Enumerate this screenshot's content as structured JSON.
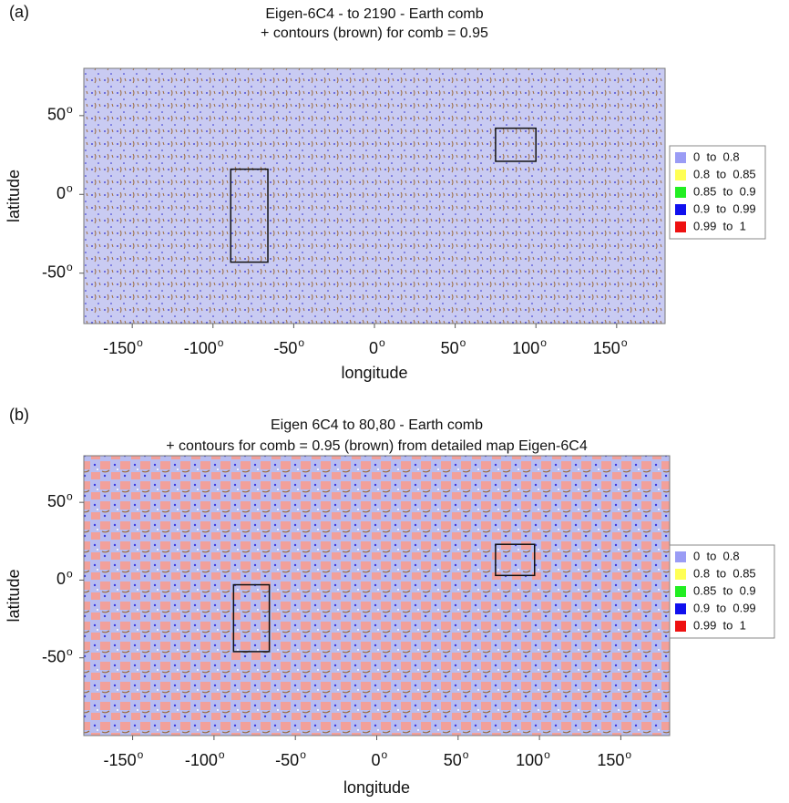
{
  "figure": {
    "tick_suffix": "o",
    "panels": [
      {
        "label": "(a)",
        "title_lines": [
          "Eigen-6C4 - to 2190 - Earth comb",
          "+ contours (brown) for comb = 0.95"
        ],
        "x_label": "longitude",
        "y_label": "latitude",
        "xlim": [
          -180,
          180
        ],
        "ylim": [
          -82,
          80
        ],
        "xticks": [
          -150,
          -100,
          -50,
          0,
          50,
          100,
          150
        ],
        "yticks": [
          -50,
          0,
          50
        ],
        "boxes": [
          {
            "lon": [
              -89,
              -66
            ],
            "lat": [
              -43,
              16
            ]
          },
          {
            "lon": [
              75,
              100
            ],
            "lat": [
              21,
              42
            ]
          }
        ],
        "legend": [
          {
            "label": "0  to  0.8",
            "color": "#9a9cf5"
          },
          {
            "label": "0.8  to  0.85",
            "color": "#ffff55"
          },
          {
            "label": "0.85  to  0.9",
            "color": "#22ee22"
          },
          {
            "label": "0.9  to  0.99",
            "color": "#1010ee"
          },
          {
            "label": "0.99  to  1",
            "color": "#ee1111"
          }
        ]
      },
      {
        "label": "(b)",
        "title_lines": [
          "Eigen 6C4 to 80,80 - Earth comb",
          "+ contours for comb = 0.95 (brown) from detailed map Eigen-6C4"
        ],
        "x_label": "longitude",
        "y_label": "latitude",
        "xlim": [
          -180,
          180
        ],
        "ylim": [
          -100,
          80
        ],
        "xticks": [
          -150,
          -100,
          -50,
          0,
          50,
          100,
          150
        ],
        "yticks": [
          -50,
          0,
          50
        ],
        "boxes": [
          {
            "lon": [
              -88,
              -66
            ],
            "lat": [
              -46,
              -3
            ]
          },
          {
            "lon": [
              73,
              97
            ],
            "lat": [
              3,
              23
            ]
          }
        ],
        "legend": [
          {
            "label": "0  to  0.8",
            "color": "#9a9cf5"
          },
          {
            "label": "0.8  to  0.85",
            "color": "#ffff55"
          },
          {
            "label": "0.85  to  0.9",
            "color": "#22ee22"
          },
          {
            "label": "0.9  to  0.99",
            "color": "#1010ee"
          },
          {
            "label": "0.99  to  1",
            "color": "#ee1111"
          }
        ]
      }
    ]
  }
}
